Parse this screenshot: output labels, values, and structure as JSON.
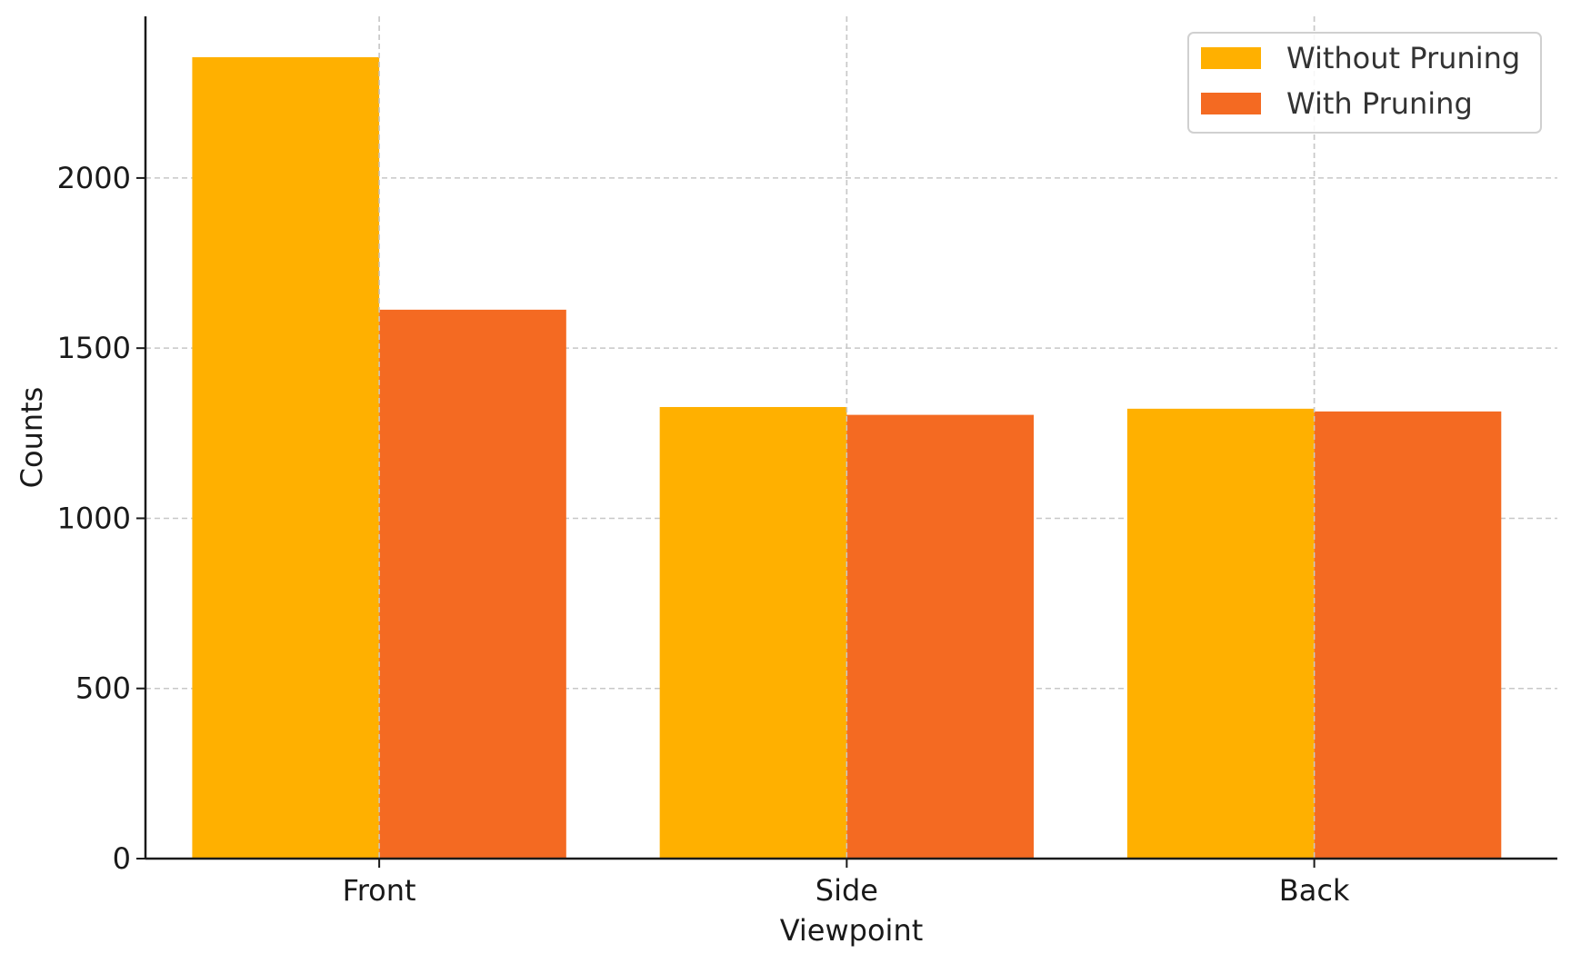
{
  "chart_data": {
    "type": "bar",
    "title": "",
    "xlabel": "Viewpoint",
    "ylabel": "Counts",
    "categories": [
      "Front",
      "Side",
      "Back"
    ],
    "series": [
      {
        "name": "Without Pruning",
        "values": [
          2355,
          1327,
          1322
        ],
        "color": "#FFB000"
      },
      {
        "name": "With Pruning",
        "values": [
          1613,
          1304,
          1314
        ],
        "color": "#F46A22"
      }
    ],
    "ylim": [
      0,
      2475
    ],
    "yticks": [
      0,
      500,
      1000,
      1500,
      2000
    ],
    "grid": true,
    "legend": "top-right"
  }
}
